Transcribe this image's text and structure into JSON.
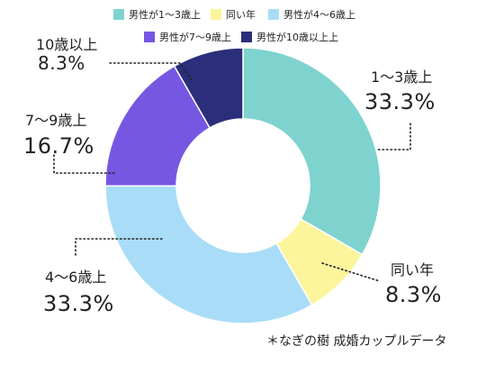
{
  "chart_data": {
    "type": "pie",
    "donut": true,
    "legend_position": "top",
    "series": [
      {
        "name": "男性が1〜3歳上",
        "label": "1〜3歳上",
        "display": "33.3%",
        "value": 33.3,
        "color": "#7ed3cf"
      },
      {
        "name": "同い年",
        "label": "同い年",
        "display": "8.3%",
        "value": 8.3,
        "color": "#fcf59c"
      },
      {
        "name": "男性が4〜6歳上",
        "label": "4〜6歳上",
        "display": "33.3%",
        "value": 33.3,
        "color": "#a9ddf7"
      },
      {
        "name": "男性が7〜9歳上",
        "label": "7〜9歳上",
        "display": "16.7%",
        "value": 16.7,
        "color": "#7657e2"
      },
      {
        "name": "男性が10歳以上上",
        "label": "10歳以上",
        "display": "8.3%",
        "value": 8.3,
        "color": "#2b2e7a"
      }
    ]
  },
  "footer": "＊なぎの樹 成婚カップルデータ"
}
